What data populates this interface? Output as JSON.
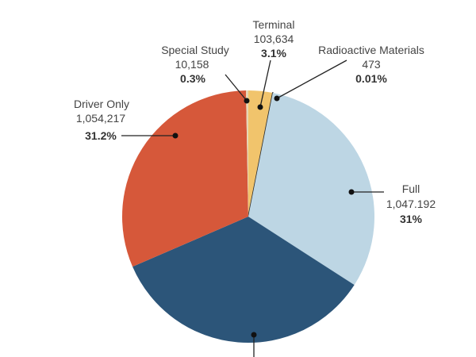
{
  "chart_data": {
    "type": "pie",
    "title": "",
    "start": "top",
    "direction": "clockwise",
    "slices": [
      {
        "name": "Terminal",
        "value": "103,634",
        "percent_label": "3.1%",
        "percent": 3.1,
        "color": "#f1c46c"
      },
      {
        "name": "Radioactive Materials",
        "value": "473",
        "percent_label": "0.01%",
        "percent": 0.01,
        "color": "#2a2a2a"
      },
      {
        "name": "Full",
        "value": "1,047.192",
        "percent_label": "31%",
        "percent": 31.0,
        "color": "#bdd6e4"
      },
      {
        "name": null,
        "value": null,
        "percent_label": null,
        "percent": 34.39,
        "color": "#2c5579"
      },
      {
        "name": "Driver Only",
        "value": "1,054,217",
        "percent_label": "31.2%",
        "percent": 31.2,
        "color": "#d6583a"
      },
      {
        "name": "Special Study",
        "value": "10,158",
        "percent_label": "0.3%",
        "percent": 0.3,
        "color": "#e6d7b5"
      }
    ]
  }
}
